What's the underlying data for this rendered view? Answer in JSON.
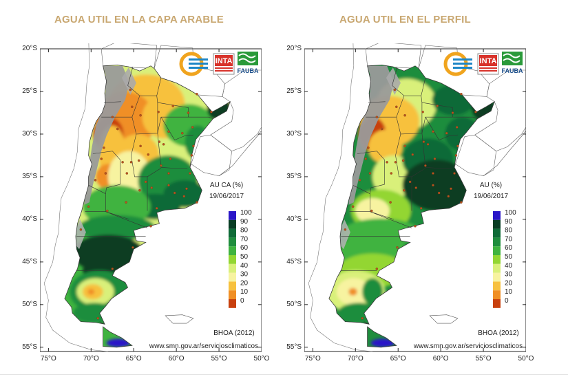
{
  "maps": [
    {
      "title": "AGUA UTIL EN LA CAPA ARABLE",
      "legend_title": "AU CA (%)",
      "date": "19/06/2017",
      "source_label": "BHOA (2012)",
      "website": "www.smn.gov.ar/serviciosclimaticos",
      "logos": [
        "INTA",
        "FAUBA"
      ]
    },
    {
      "title": "AGUA UTIL EN EL PERFIL",
      "legend_title": "AU (%)",
      "date": "19/06/2017",
      "source_label": "BHOA (2012)",
      "website": "www.smn.gov.ar/serviciosclimaticos",
      "logos": [
        "INTA",
        "FAUBA"
      ]
    }
  ],
  "lat_ticks": [
    "20°S",
    "25°S",
    "30°S",
    "35°S",
    "40°S",
    "45°S",
    "50°S",
    "55°S"
  ],
  "lon_ticks": [
    "75°O",
    "70°O",
    "65°O",
    "60°O",
    "55°O",
    "50°O"
  ],
  "legend_scale": {
    "labels": [
      "100",
      "90",
      "80",
      "70",
      "60",
      "50",
      "40",
      "30",
      "20",
      "10",
      "0"
    ],
    "colors": [
      "#2a16c8",
      "#093d24",
      "#0f6b37",
      "#1f8d3d",
      "#3fb33f",
      "#93d632",
      "#d9f07a",
      "#f7f3a0",
      "#f7c13e",
      "#f08f25",
      "#c8400e"
    ]
  },
  "colors": {
    "title": "#c9a872",
    "border": "#3a3a3a",
    "mountains": "#9a9a9a"
  }
}
